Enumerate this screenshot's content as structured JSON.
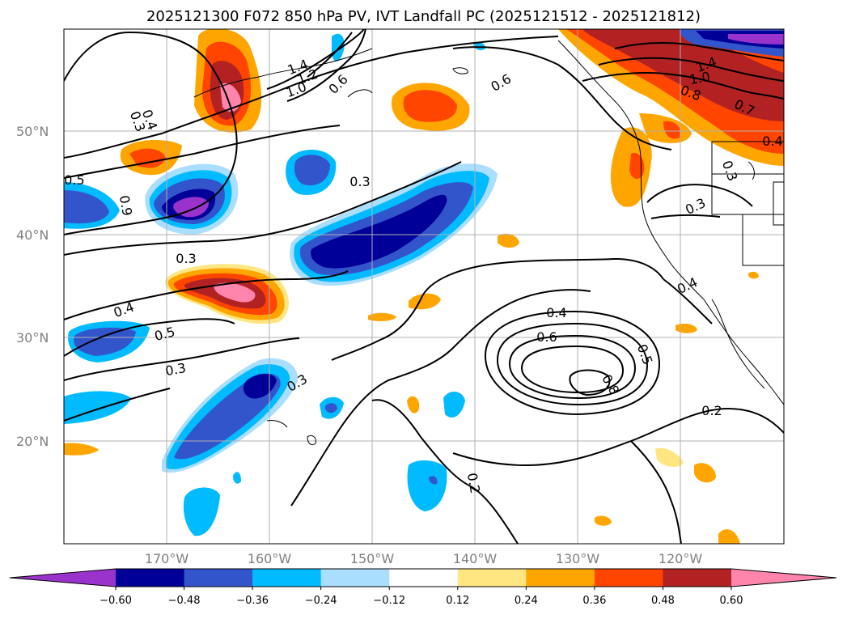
{
  "title": "2025121300 F072 850 hPa PV, IVT Landfall PC (2025121512 - 2025121812)",
  "map": {
    "lat_labels": [
      "50°N",
      "40°N",
      "30°N",
      "20°N"
    ],
    "lon_labels": [
      "170°W",
      "160°W",
      "150°W",
      "140°W",
      "130°W",
      "120°W"
    ],
    "contour_labels": [
      "0.3",
      "0.4",
      "0.5",
      "0.9",
      "0.3",
      "0.4",
      "0.5",
      "0.3",
      "1.4",
      "1.2",
      "1.0",
      "0.6",
      "0.3",
      "0.6",
      "1.4",
      "1.0",
      "0.8",
      "0.7",
      "0.4",
      "0.3",
      "0.3",
      "0.4",
      "0.4",
      "0.6",
      "0.5",
      "0.8",
      "0.3",
      "0.2",
      "0.2"
    ]
  },
  "colorbar": {
    "ticks": [
      "−0.60",
      "−0.48",
      "−0.36",
      "−0.24",
      "−0.12",
      "0.12",
      "0.24",
      "0.36",
      "0.48",
      "0.60"
    ],
    "colors": [
      "#9933cc",
      "#000099",
      "#3355cc",
      "#00bbff",
      "#aadeff",
      "#ffffff",
      "#ffe680",
      "#ffa500",
      "#ff4500",
      "#b22222",
      "#ff85ad"
    ]
  }
}
